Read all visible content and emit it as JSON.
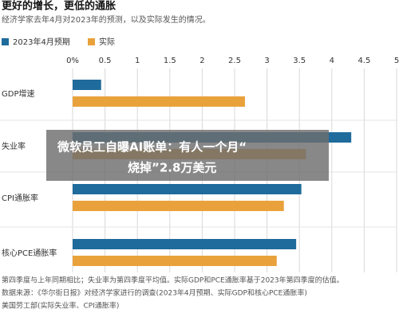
{
  "chart_data": {
    "type": "hbar",
    "title": "更好的增长，更低的通胀",
    "subtitle": "经济学家去年4月对2023年的预测，以及实际发生的情况。",
    "categories": [
      "GDP增速",
      "失业率",
      "CPI通胀率",
      "核心PCE通胀率"
    ],
    "series": [
      {
        "name": "2023年4月预期",
        "color": "#1f6b9c",
        "values": [
          0.44,
          4.3,
          3.53,
          3.45
        ]
      },
      {
        "name": "实际",
        "color": "#e9a23b",
        "values": [
          2.66,
          3.6,
          3.26,
          3.15
        ]
      }
    ],
    "xlim": [
      0,
      5
    ],
    "xticks": [
      {
        "value": 0,
        "label": "0%"
      },
      0.5,
      1,
      1.5,
      2,
      2.5,
      3,
      3.5,
      4,
      4.5,
      5
    ],
    "grid": true,
    "notes": [
      "第四季度与上年同期相比；失业率为第四季度平均值。实际GDP和PCE通胀率基于2023年第四季度的估值。",
      "数据来源：《华尔街日报》对经济学家进行的调查(2023年4月预期、实际GDP和核心PCE通胀率)",
      "美国劳工部(实际失业率、CPI通胀率)"
    ]
  },
  "overlay": {
    "headline_lines": [
      "微软员工自曝AI账单：有人一个月“",
      "烧掉”2.8万美元"
    ]
  }
}
